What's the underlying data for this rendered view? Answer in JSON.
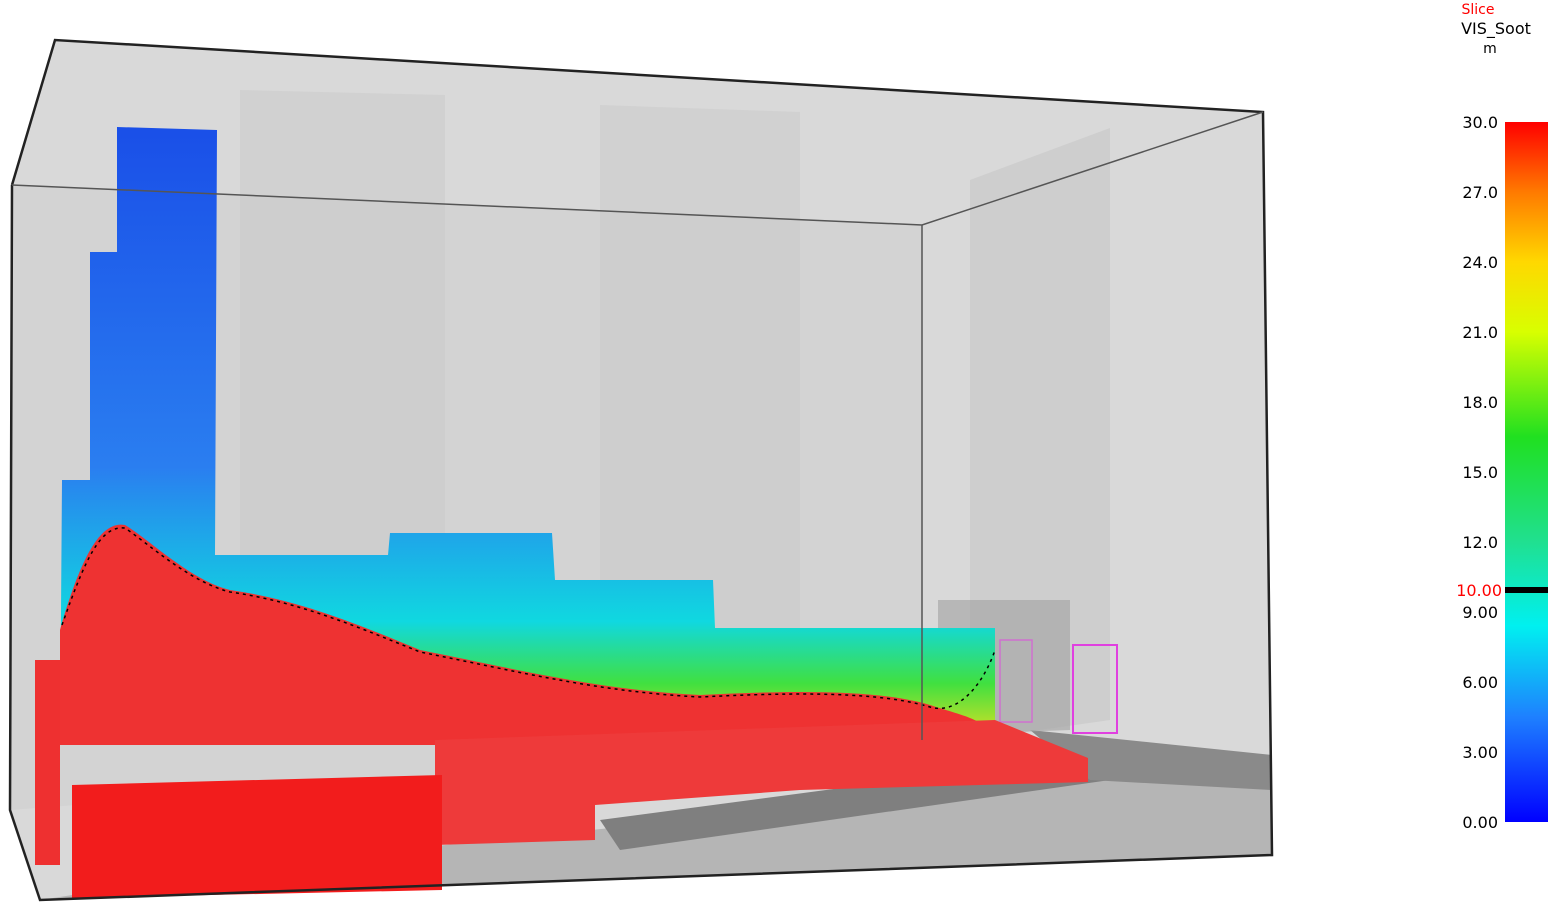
{
  "colorbar": {
    "header": [
      "Slice",
      "VIS_Soot",
      "m"
    ],
    "ticks": [
      "30.0",
      "27.0",
      "24.0",
      "21.0",
      "18.0",
      "15.0",
      "12.0",
      "9.00",
      "6.00",
      "3.00",
      "0.00"
    ],
    "highlight": "10.00"
  }
}
